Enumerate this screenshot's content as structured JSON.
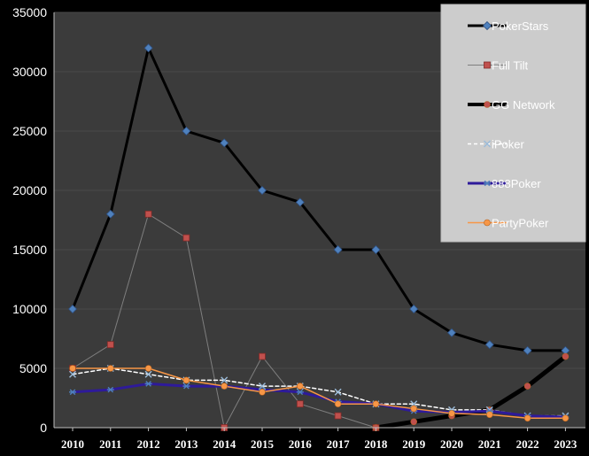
{
  "chart_data": {
    "type": "line",
    "title": "",
    "xlabel": "",
    "ylabel": "",
    "ylim": [
      0,
      35000
    ],
    "yticks": [
      0,
      5000,
      10000,
      15000,
      20000,
      25000,
      30000,
      35000
    ],
    "y_tick_labels": [
      "0",
      "5000",
      "10000",
      "15000",
      "20000",
      "25000",
      "30000",
      "35000"
    ],
    "categories": [
      "2010",
      "2011",
      "2012",
      "2013",
      "2014",
      "2015",
      "2016",
      "2017",
      "2018",
      "2019",
      "2020",
      "2021",
      "2022",
      "2023"
    ],
    "grid": true,
    "legend_position": "top-right",
    "series": [
      {
        "name": "PokerStars",
        "color": "#000000",
        "marker": "diamond",
        "marker_color": "#4f81bd",
        "values": [
          10000,
          18000,
          32000,
          25000,
          24000,
          20000,
          19000,
          15000,
          15000,
          10000,
          8000,
          7000,
          6500,
          6500
        ]
      },
      {
        "name": "Full Tilt",
        "color": "#7f7f7f",
        "marker": "square",
        "marker_color": "#c0504d",
        "values": [
          5000,
          7000,
          18000,
          16000,
          0,
          6000,
          2000,
          1000,
          0,
          null,
          null,
          null,
          null,
          null
        ]
      },
      {
        "name": "GG Network",
        "color": "#000000",
        "marker": "circle",
        "marker_color": "#c0504d",
        "values": [
          null,
          null,
          null,
          null,
          null,
          null,
          null,
          null,
          0,
          500,
          1000,
          1500,
          3500,
          6000
        ]
      },
      {
        "name": "iPoker",
        "color": "#ffffff",
        "marker": "x",
        "marker_color": "#9bbbd9",
        "dashed": true,
        "values": [
          4500,
          5000,
          4500,
          4000,
          4000,
          3500,
          3500,
          3000,
          2000,
          2000,
          1500,
          1500,
          1000,
          1000
        ]
      },
      {
        "name": "888Poker",
        "color": "#2e1a9a",
        "marker": "star",
        "marker_color": "#4f81bd",
        "values": [
          3000,
          3200,
          3700,
          3500,
          3500,
          3200,
          3000,
          2200,
          2000,
          1400,
          1300,
          1400,
          1000,
          900
        ]
      },
      {
        "name": "PartyPoker",
        "color": "#f79646",
        "marker": "circle",
        "marker_color": "#f79646",
        "values": [
          5000,
          5000,
          5000,
          4000,
          3500,
          3000,
          3500,
          2000,
          2000,
          1600,
          1200,
          1100,
          800,
          800
        ]
      }
    ]
  }
}
